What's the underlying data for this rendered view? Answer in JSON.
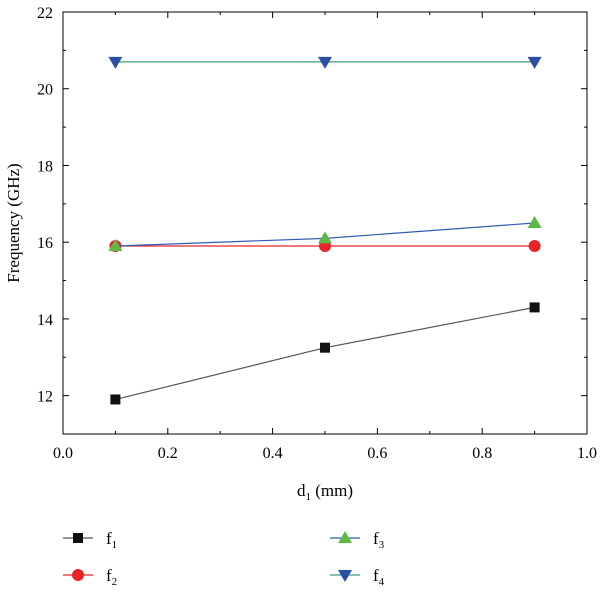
{
  "chart_data": {
    "type": "line",
    "title": "",
    "xlabel": "d",
    "xlabel_sub": "1",
    "xlabel_unit": " (mm)",
    "ylabel": "Frequency (GHz)",
    "xlim": [
      0.0,
      1.0
    ],
    "ylim": [
      11,
      22
    ],
    "xticks": [
      0.0,
      0.2,
      0.4,
      0.6,
      0.8,
      1.0
    ],
    "xtick_labels": [
      "0.0",
      "0.2",
      "0.4",
      "0.6",
      "0.8",
      "1.0"
    ],
    "yticks": [
      12,
      14,
      16,
      18,
      20,
      22
    ],
    "ytick_labels": [
      "12",
      "14",
      "16",
      "18",
      "20",
      "22"
    ],
    "grid": false,
    "legend_position": "bottom",
    "x": [
      0.1,
      0.5,
      0.9
    ],
    "series": [
      {
        "name": "f",
        "sub": "1",
        "values": [
          11.9,
          13.25,
          14.3
        ],
        "marker": "square",
        "line_color": "#555555",
        "marker_color": "#111111"
      },
      {
        "name": "f",
        "sub": "2",
        "values": [
          15.9,
          15.9,
          15.9
        ],
        "marker": "circle",
        "line_color": "#e8242a",
        "marker_color": "#e8242a"
      },
      {
        "name": "f",
        "sub": "3",
        "values": [
          15.9,
          16.1,
          16.5
        ],
        "marker": "triangle-up",
        "line_color": "#2f5bb7",
        "marker_color": "#5db846"
      },
      {
        "name": "f",
        "sub": "4",
        "values": [
          20.7,
          20.7,
          20.7
        ],
        "marker": "triangle-down",
        "line_color": "#3f9f7a",
        "marker_color": "#2a4ea3"
      }
    ]
  }
}
